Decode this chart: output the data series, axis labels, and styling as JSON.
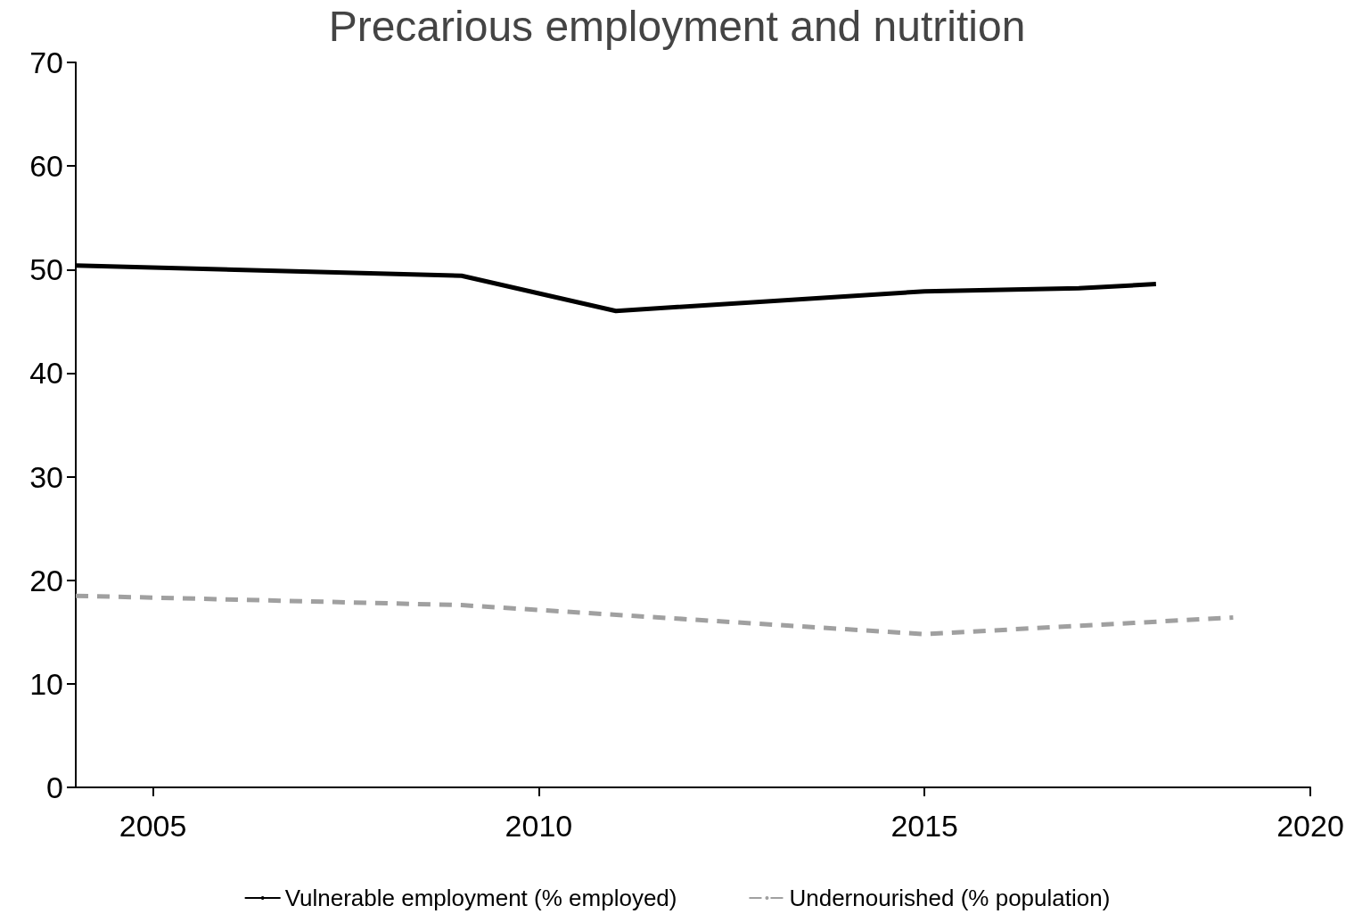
{
  "chart_data": {
    "type": "line",
    "title": "Precarious employment and nutrition",
    "series": [
      {
        "name": "Vulnerable employment (% employed)",
        "color": "#000000",
        "line_style": "solid",
        "x": [
          2004,
          2009,
          2011,
          2015,
          2017,
          2018
        ],
        "values": [
          50.4,
          49.4,
          46.0,
          47.9,
          48.2,
          48.6
        ]
      },
      {
        "name": "Undernourished (% population)",
        "color": "#a0a0a0",
        "line_style": "dashed",
        "x": [
          2004,
          2009,
          2015,
          2019
        ],
        "values": [
          18.5,
          17.6,
          14.8,
          16.4
        ]
      }
    ],
    "xlim": [
      2004,
      2020
    ],
    "xticks": [
      2005,
      2010,
      2015,
      2020
    ],
    "ylim": [
      0,
      70
    ],
    "yticks": [
      0,
      10,
      20,
      30,
      40,
      50,
      60,
      70
    ],
    "grid": false,
    "legend": "bottom",
    "marker": "none"
  }
}
